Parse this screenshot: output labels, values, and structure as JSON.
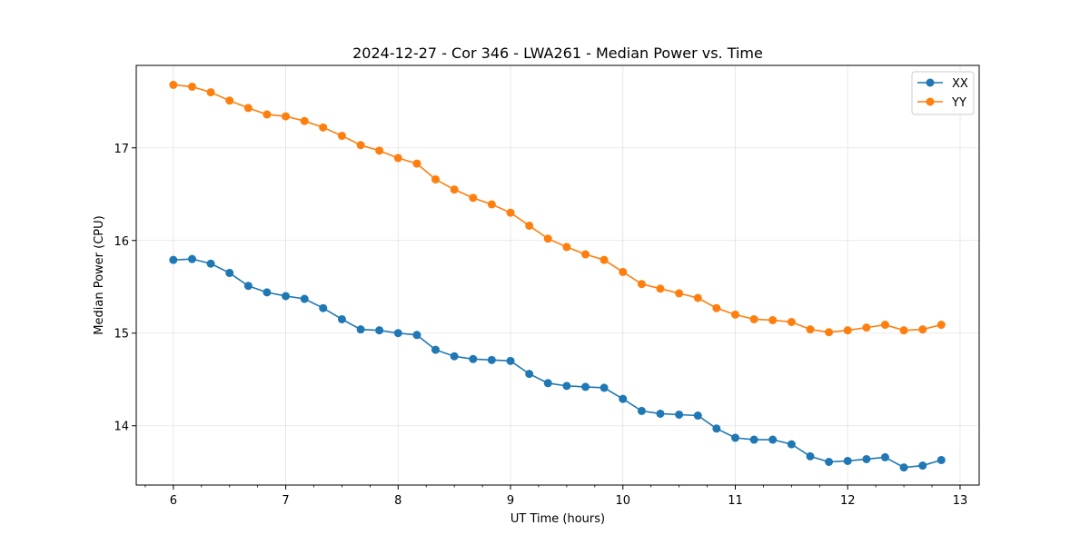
{
  "chart_data": {
    "type": "line",
    "title": "2024-12-27 - Cor 346 - LWA261 - Median Power vs. Time",
    "xlabel": "UT Time (hours)",
    "ylabel": "Median Power (CPU)",
    "xlim": [
      5.67,
      13.17
    ],
    "ylim": [
      13.36,
      17.89
    ],
    "xticks": [
      "6",
      "7",
      "8",
      "9",
      "10",
      "11",
      "12",
      "13"
    ],
    "yticks": [
      "14",
      "15",
      "16",
      "17"
    ],
    "grid": true,
    "legend_position": "top-right",
    "x": [
      6.0,
      6.167,
      6.333,
      6.5,
      6.667,
      6.833,
      7.0,
      7.167,
      7.333,
      7.5,
      7.667,
      7.833,
      8.0,
      8.167,
      8.333,
      8.5,
      8.667,
      8.833,
      9.0,
      9.167,
      9.333,
      9.5,
      9.667,
      9.833,
      10.0,
      10.167,
      10.333,
      10.5,
      10.667,
      10.833,
      11.0,
      11.167,
      11.333,
      11.5,
      11.667,
      11.833,
      12.0,
      12.167,
      12.333,
      12.5,
      12.667,
      12.833
    ],
    "series": [
      {
        "name": "XX",
        "color": "#1f77b4",
        "values": [
          15.79,
          15.8,
          15.75,
          15.65,
          15.51,
          15.44,
          15.4,
          15.37,
          15.27,
          15.15,
          15.04,
          15.03,
          15.0,
          14.98,
          14.82,
          14.75,
          14.72,
          14.71,
          14.7,
          14.56,
          14.46,
          14.43,
          14.42,
          14.41,
          14.29,
          14.16,
          14.13,
          14.12,
          14.11,
          13.97,
          13.87,
          13.85,
          13.85,
          13.8,
          13.67,
          13.61,
          13.62,
          13.64,
          13.66,
          13.55,
          13.57,
          13.63
        ]
      },
      {
        "name": "YY",
        "color": "#ff7f0e",
        "values": [
          17.68,
          17.66,
          17.6,
          17.51,
          17.43,
          17.36,
          17.34,
          17.29,
          17.22,
          17.13,
          17.03,
          16.97,
          16.89,
          16.83,
          16.66,
          16.55,
          16.46,
          16.39,
          16.3,
          16.16,
          16.02,
          15.93,
          15.85,
          15.79,
          15.66,
          15.53,
          15.48,
          15.43,
          15.38,
          15.27,
          15.2,
          15.15,
          15.14,
          15.12,
          15.04,
          15.01,
          15.03,
          15.06,
          15.09,
          15.03,
          15.04,
          15.09
        ]
      }
    ]
  }
}
